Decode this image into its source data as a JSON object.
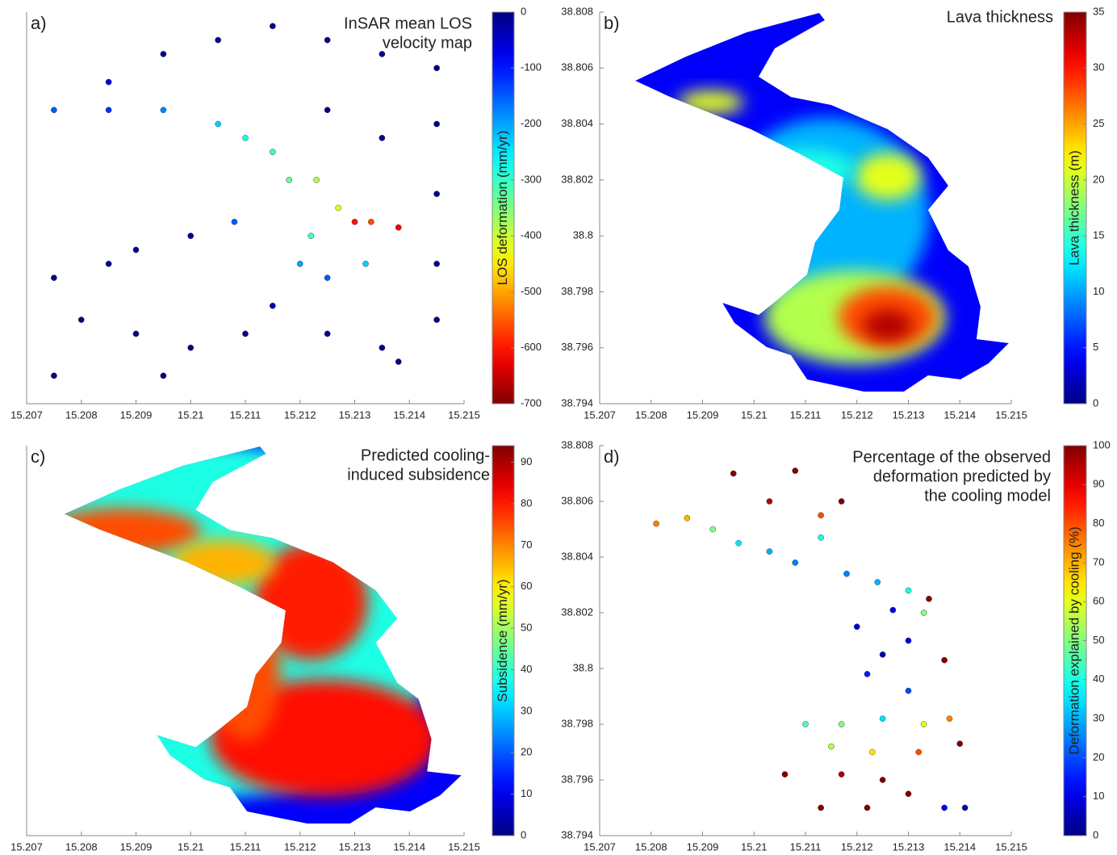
{
  "chart_data": [
    {
      "type": "scatter",
      "panel": "a)",
      "title": [
        "InSAR mean LOS",
        "velocity map"
      ],
      "colorbar_label": "LOS deformation (mm/yr)",
      "colormap": "jet_r",
      "clim": [
        -700,
        0
      ],
      "cticks": [
        0,
        -100,
        -200,
        -300,
        -400,
        -500,
        -600,
        -700
      ],
      "xlim": [
        15.207,
        15.215
      ],
      "xticks": [
        15.207,
        15.208,
        15.209,
        15.21,
        15.211,
        15.212,
        15.213,
        15.214,
        15.215
      ],
      "ylim": [
        38.794,
        38.808
      ],
      "x": [
        15.2085,
        15.2095,
        15.2105,
        15.2115,
        15.2125,
        15.2135,
        15.2145,
        15.2085,
        15.2075,
        15.2095,
        15.2105,
        15.211,
        15.2115,
        15.2118,
        15.2123,
        15.2127,
        15.2133,
        15.2138,
        15.213,
        15.2122,
        15.212,
        15.2125,
        15.2132,
        15.2108,
        15.21,
        15.209,
        15.2085,
        15.2075,
        15.208,
        15.209,
        15.21,
        15.211,
        15.2115,
        15.2125,
        15.2135,
        15.2145,
        15.2145,
        15.2145,
        15.2135,
        15.2145,
        15.2125,
        15.2075,
        15.2095,
        15.2138
      ],
      "y": [
        38.8055,
        38.8065,
        38.807,
        38.8075,
        38.807,
        38.8065,
        38.806,
        38.8045,
        38.8045,
        38.8045,
        38.804,
        38.8035,
        38.803,
        38.802,
        38.802,
        38.801,
        38.8005,
        38.8003,
        38.8005,
        38.8,
        38.799,
        38.7985,
        38.799,
        38.8005,
        38.8,
        38.7995,
        38.799,
        38.7985,
        38.797,
        38.7965,
        38.796,
        38.7965,
        38.7975,
        38.7965,
        38.796,
        38.797,
        38.799,
        38.8015,
        38.8035,
        38.804,
        38.8045,
        38.795,
        38.795,
        38.7955
      ],
      "values": [
        -60,
        -20,
        -10,
        -10,
        -5,
        -5,
        -10,
        -120,
        -150,
        -180,
        -230,
        -280,
        -300,
        -330,
        -380,
        -420,
        -560,
        -620,
        -600,
        -300,
        -200,
        -150,
        -230,
        -150,
        -20,
        -10,
        -10,
        -10,
        -5,
        -5,
        -5,
        -10,
        -30,
        -20,
        -10,
        -5,
        -5,
        -5,
        -10,
        -5,
        -10,
        -5,
        -5,
        -5
      ]
    },
    {
      "type": "raster",
      "panel": "b)",
      "title": [
        "Lava thickness"
      ],
      "colorbar_label": "Lava thickness (m)",
      "colormap": "jet",
      "clim": [
        0,
        35
      ],
      "cticks": [
        0,
        5,
        10,
        15,
        20,
        25,
        30,
        35
      ],
      "xlim": [
        15.207,
        15.215
      ],
      "xticks": [
        15.207,
        15.208,
        15.209,
        15.21,
        15.211,
        15.212,
        15.213,
        15.214,
        15.215
      ],
      "ylim": [
        38.794,
        38.808
      ],
      "yticks": [
        38.794,
        38.796,
        38.798,
        38.8,
        38.802,
        38.804,
        38.806,
        38.808
      ]
    },
    {
      "type": "raster",
      "panel": "c)",
      "title": [
        "Predicted cooling-",
        "induced subsidence"
      ],
      "colorbar_label": "Subsidence (mm/yr)",
      "colormap": "jet",
      "clim": [
        0,
        94
      ],
      "cticks": [
        0,
        10,
        20,
        30,
        40,
        50,
        60,
        70,
        80,
        90
      ],
      "xlim": [
        15.207,
        15.215
      ],
      "xticks": [
        15.207,
        15.208,
        15.209,
        15.21,
        15.211,
        15.212,
        15.213,
        15.214,
        15.215
      ],
      "ylim": [
        38.794,
        38.808
      ]
    },
    {
      "type": "scatter",
      "panel": "d)",
      "title": [
        "Percentage of the observed",
        "deformation predicted by",
        "the cooling model"
      ],
      "colorbar_label": "Deformation explained by cooling (%)",
      "colormap": "jet",
      "clim": [
        0,
        100
      ],
      "cticks": [
        0,
        10,
        20,
        30,
        40,
        50,
        60,
        70,
        80,
        90,
        100
      ],
      "xlim": [
        15.207,
        15.215
      ],
      "xticks": [
        15.207,
        15.208,
        15.209,
        15.21,
        15.211,
        15.212,
        15.213,
        15.214,
        15.215
      ],
      "ylim": [
        38.794,
        38.808
      ],
      "yticks": [
        38.794,
        38.796,
        38.798,
        38.8,
        38.802,
        38.804,
        38.806,
        38.808
      ],
      "x": [
        15.2081,
        15.2087,
        15.2092,
        15.2097,
        15.2103,
        15.2108,
        15.2113,
        15.2113,
        15.2103,
        15.2096,
        15.2108,
        15.2117,
        15.2118,
        15.2124,
        15.213,
        15.2127,
        15.212,
        15.2125,
        15.213,
        15.2133,
        15.2134,
        15.2122,
        15.213,
        15.2137,
        15.211,
        15.2117,
        15.2125,
        15.2133,
        15.2138,
        15.2115,
        15.2123,
        15.2132,
        15.214,
        15.2117,
        15.2125,
        15.213,
        15.2113,
        15.2122,
        15.2106,
        15.2137,
        15.2141
      ],
      "y": [
        38.8052,
        38.8054,
        38.805,
        38.8045,
        38.8042,
        38.8038,
        38.8047,
        38.8055,
        38.806,
        38.807,
        38.8071,
        38.806,
        38.8034,
        38.8031,
        38.8028,
        38.8021,
        38.8015,
        38.8005,
        38.801,
        38.802,
        38.8025,
        38.7998,
        38.7992,
        38.8003,
        38.798,
        38.798,
        38.7982,
        38.798,
        38.7982,
        38.7972,
        38.797,
        38.797,
        38.7973,
        38.7962,
        38.796,
        38.7955,
        38.795,
        38.795,
        38.7962,
        38.795,
        38.795
      ],
      "values": [
        75,
        70,
        50,
        35,
        30,
        25,
        40,
        80,
        95,
        100,
        100,
        100,
        25,
        30,
        40,
        10,
        8,
        5,
        10,
        50,
        100,
        15,
        20,
        100,
        45,
        50,
        35,
        60,
        75,
        55,
        65,
        80,
        100,
        95,
        100,
        100,
        100,
        100,
        100,
        10,
        5
      ]
    }
  ]
}
